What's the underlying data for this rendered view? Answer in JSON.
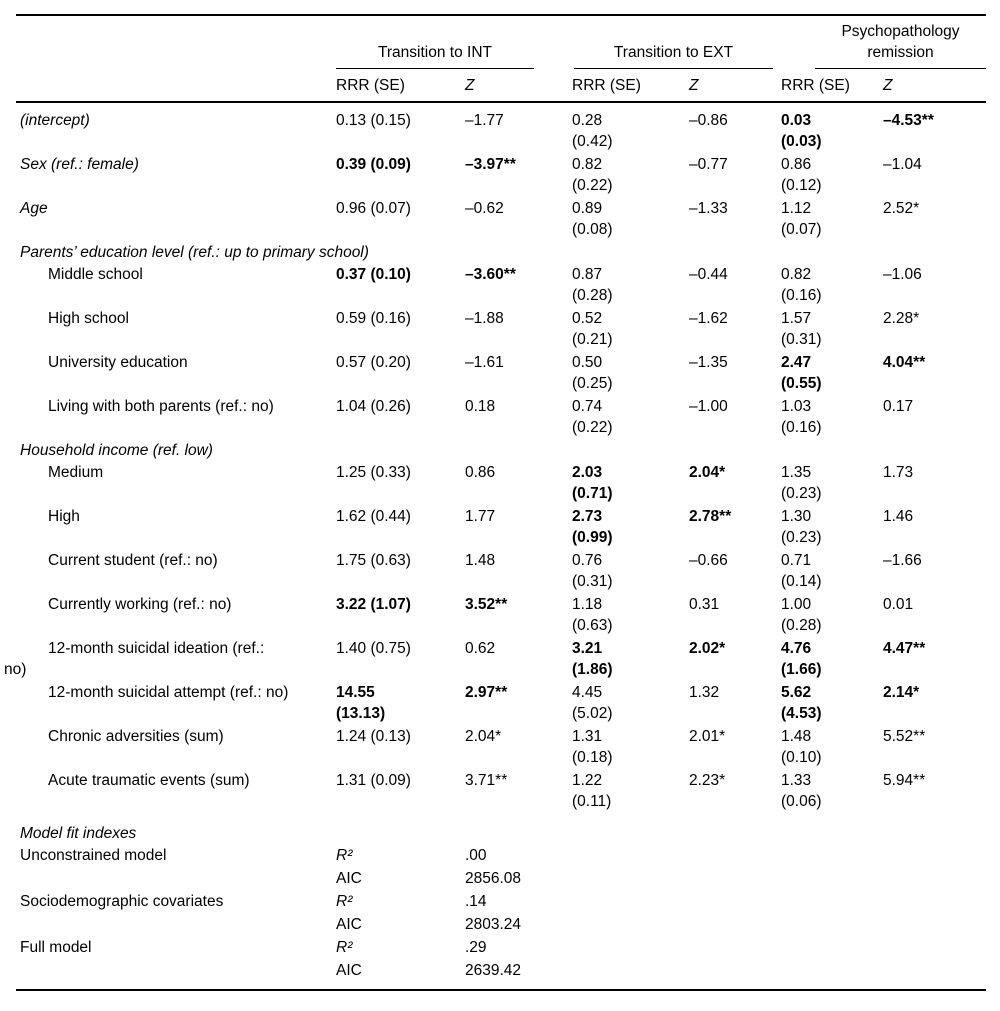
{
  "table": {
    "col_groups": [
      {
        "label": "Transition to INT"
      },
      {
        "label": "Transition to EXT"
      },
      {
        "label": "Psychopathology remission"
      }
    ],
    "sub_headers": [
      "RRR (SE)",
      "Z",
      "RRR (SE)",
      "Z",
      "RRR (SE)",
      "Z"
    ],
    "rows": [
      {
        "kind": "data",
        "label": "(intercept)",
        "italic": true,
        "cells": [
          {
            "t": "0.13 (0.15)"
          },
          {
            "t": "–1.77"
          },
          {
            "t": "0.28\n(0.42)"
          },
          {
            "t": "–0.86"
          },
          {
            "t": "0.03\n(0.03)",
            "b": true
          },
          {
            "t": "–4.53**",
            "b": true
          }
        ]
      },
      {
        "kind": "data",
        "label": "Sex (ref.: female)",
        "italic": true,
        "cells": [
          {
            "t": "0.39 (0.09)",
            "b": true
          },
          {
            "t": "–3.97**",
            "b": true
          },
          {
            "t": "0.82\n(0.22)"
          },
          {
            "t": "–0.77"
          },
          {
            "t": "0.86\n(0.12)"
          },
          {
            "t": "–1.04"
          }
        ]
      },
      {
        "kind": "data",
        "label": "Age",
        "italic": true,
        "cells": [
          {
            "t": "0.96 (0.07)"
          },
          {
            "t": "–0.62"
          },
          {
            "t": "0.89\n(0.08)"
          },
          {
            "t": "–1.33"
          },
          {
            "t": "1.12\n(0.07)"
          },
          {
            "t": "2.52*"
          }
        ]
      },
      {
        "kind": "section",
        "label": "Parents’ education level (ref.: up to primary school)",
        "italic": true
      },
      {
        "kind": "data",
        "label": "Middle school",
        "indent": true,
        "cells": [
          {
            "t": "0.37 (0.10)",
            "b": true
          },
          {
            "t": "–3.60**",
            "b": true
          },
          {
            "t": "0.87\n(0.28)"
          },
          {
            "t": "–0.44"
          },
          {
            "t": "0.82\n(0.16)"
          },
          {
            "t": "–1.06"
          }
        ]
      },
      {
        "kind": "data",
        "label": "High school",
        "indent": true,
        "cells": [
          {
            "t": "0.59 (0.16)"
          },
          {
            "t": "–1.88"
          },
          {
            "t": "0.52\n(0.21)"
          },
          {
            "t": "–1.62"
          },
          {
            "t": "1.57\n(0.31)"
          },
          {
            "t": "2.28*"
          }
        ]
      },
      {
        "kind": "data",
        "label": "University education",
        "indent": true,
        "cells": [
          {
            "t": "0.57 (0.20)"
          },
          {
            "t": "–1.61"
          },
          {
            "t": "0.50\n(0.25)"
          },
          {
            "t": "–1.35"
          },
          {
            "t": "2.47\n(0.55)",
            "b": true
          },
          {
            "t": "4.04**",
            "b": true
          }
        ]
      },
      {
        "kind": "data",
        "label": "Living with both parents (ref.: no)",
        "indent": true,
        "cells": [
          {
            "t": "1.04 (0.26)"
          },
          {
            "t": "0.18"
          },
          {
            "t": "0.74\n(0.22)"
          },
          {
            "t": "–1.00"
          },
          {
            "t": "1.03\n(0.16)"
          },
          {
            "t": "0.17"
          }
        ]
      },
      {
        "kind": "section",
        "label": "Household income (ref. low)",
        "italic": true
      },
      {
        "kind": "data",
        "label": "Medium",
        "indent": true,
        "cells": [
          {
            "t": "1.25 (0.33)"
          },
          {
            "t": "0.86"
          },
          {
            "t": "2.03\n(0.71)",
            "b": true
          },
          {
            "t": "2.04*",
            "b": true
          },
          {
            "t": "1.35\n(0.23)"
          },
          {
            "t": "1.73"
          }
        ]
      },
      {
        "kind": "data",
        "label": "High",
        "indent": true,
        "cells": [
          {
            "t": "1.62 (0.44)"
          },
          {
            "t": "1.77"
          },
          {
            "t": "2.73\n(0.99)",
            "b": true
          },
          {
            "t": "2.78**",
            "b": true
          },
          {
            "t": "1.30\n(0.23)"
          },
          {
            "t": "1.46"
          }
        ]
      },
      {
        "kind": "data",
        "label": "Current student (ref.: no)",
        "indent": true,
        "cells": [
          {
            "t": "1.75 (0.63)"
          },
          {
            "t": "1.48"
          },
          {
            "t": "0.76\n(0.31)"
          },
          {
            "t": "–0.66"
          },
          {
            "t": "0.71\n(0.14)"
          },
          {
            "t": "–1.66"
          }
        ]
      },
      {
        "kind": "data",
        "label": "Currently working (ref.: no)",
        "indent": true,
        "cells": [
          {
            "t": "3.22 (1.07)",
            "b": true
          },
          {
            "t": "3.52**",
            "b": true
          },
          {
            "t": "1.18\n(0.63)"
          },
          {
            "t": "0.31"
          },
          {
            "t": "1.00\n(0.28)"
          },
          {
            "t": "0.01"
          }
        ]
      },
      {
        "kind": "data",
        "label": "12-month suicidal ideation (ref.:\nno)",
        "indent": true,
        "hang": true,
        "cells": [
          {
            "t": "1.40 (0.75)"
          },
          {
            "t": "0.62"
          },
          {
            "t": "3.21\n(1.86)",
            "b": true
          },
          {
            "t": "2.02*",
            "b": true
          },
          {
            "t": "4.76\n(1.66)",
            "b": true
          },
          {
            "t": "4.47**",
            "b": true
          }
        ]
      },
      {
        "kind": "data",
        "label": "12-month suicidal attempt (ref.: no)",
        "indent": true,
        "cells": [
          {
            "t": "14.55\n(13.13)",
            "b": true
          },
          {
            "t": "2.97**",
            "b": true
          },
          {
            "t": "4.45\n(5.02)"
          },
          {
            "t": "1.32"
          },
          {
            "t": "5.62\n(4.53)",
            "b": true
          },
          {
            "t": "2.14*",
            "b": true
          }
        ]
      },
      {
        "kind": "data",
        "label": "Chronic adversities (sum)",
        "indent": true,
        "cells": [
          {
            "t": "1.24 (0.13)"
          },
          {
            "t": "2.04*"
          },
          {
            "t": "1.31\n(0.18)"
          },
          {
            "t": "2.01*"
          },
          {
            "t": "1.48\n(0.10)"
          },
          {
            "t": "5.52**"
          }
        ]
      },
      {
        "kind": "data",
        "label": "Acute traumatic events (sum)",
        "indent": true,
        "cells": [
          {
            "t": "1.31 (0.09)"
          },
          {
            "t": "3.71**"
          },
          {
            "t": "1.22\n(0.11)"
          },
          {
            "t": "2.23*"
          },
          {
            "t": "1.33\n(0.06)"
          },
          {
            "t": "5.94**"
          }
        ]
      },
      {
        "kind": "section",
        "label": "Model fit indexes",
        "italic": true,
        "gap": true
      },
      {
        "kind": "data",
        "label": "Unconstrained model",
        "short": true,
        "cells": [
          {
            "t": "R²",
            "i": true
          },
          {
            "t": ".00"
          }
        ]
      },
      {
        "kind": "data",
        "label": "",
        "short": true,
        "cells": [
          {
            "t": "AIC"
          },
          {
            "t": "2856.08"
          }
        ]
      },
      {
        "kind": "data",
        "label": "Sociodemographic covariates",
        "short": true,
        "cells": [
          {
            "t": "R²",
            "i": true
          },
          {
            "t": ".14"
          }
        ]
      },
      {
        "kind": "data",
        "label": "",
        "short": true,
        "cells": [
          {
            "t": "AIC"
          },
          {
            "t": "2803.24"
          }
        ]
      },
      {
        "kind": "data",
        "label": "Full model",
        "short": true,
        "cells": [
          {
            "t": "R²",
            "i": true
          },
          {
            "t": ".29"
          }
        ]
      },
      {
        "kind": "data",
        "label": "",
        "short": true,
        "cells": [
          {
            "t": "AIC"
          },
          {
            "t": "2639.42"
          }
        ]
      }
    ]
  }
}
